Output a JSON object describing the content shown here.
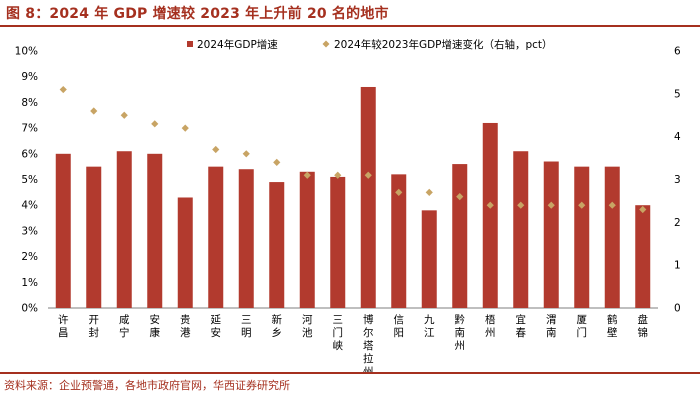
{
  "figure": {
    "title": "图 8：2024 年 GDP 增速较 2023 年上升前 20 名的地市",
    "source": "资料来源：企业预警通，各地市政府官网，华西证券研究所"
  },
  "colors": {
    "bar": "#B23A2E",
    "marker": "#C8A464",
    "brand": "#A5301F"
  },
  "chart_data": {
    "type": "bar",
    "categories": [
      "许昌",
      "开封",
      "咸宁",
      "安康",
      "贵港",
      "延安",
      "三明",
      "新乡",
      "河池",
      "三门峡",
      "博尔塔拉州",
      "信阳",
      "九江",
      "黔南州",
      "梧州",
      "宜春",
      "渭南",
      "厦门",
      "鹤壁",
      "盘锦"
    ],
    "category_labels": [
      [
        "许",
        "昌"
      ],
      [
        "开",
        "封"
      ],
      [
        "咸",
        "宁"
      ],
      [
        "安",
        "康"
      ],
      [
        "贵",
        "港"
      ],
      [
        "延",
        "安"
      ],
      [
        "三",
        "明"
      ],
      [
        "新",
        "乡"
      ],
      [
        "河",
        "池"
      ],
      [
        "三",
        "门",
        "峡"
      ],
      [
        "博",
        "尔",
        "塔",
        "拉",
        "州"
      ],
      [
        "信",
        "阳"
      ],
      [
        "九",
        "江"
      ],
      [
        "黔",
        "南",
        "州"
      ],
      [
        "梧",
        "州"
      ],
      [
        "宜",
        "春"
      ],
      [
        "渭",
        "南"
      ],
      [
        "厦",
        "门"
      ],
      [
        "鹤",
        "壁"
      ],
      [
        "盘",
        "锦"
      ]
    ],
    "series": [
      {
        "name": "2024年GDP增速",
        "type": "bar",
        "axis": "left",
        "values": [
          6.0,
          5.5,
          6.1,
          6.0,
          4.3,
          5.5,
          5.4,
          4.9,
          5.3,
          5.1,
          8.6,
          5.2,
          3.8,
          5.6,
          7.2,
          6.1,
          5.7,
          5.5,
          5.5,
          4.0
        ]
      },
      {
        "name": "2024年较2023年GDP增速变化（右轴，pct）",
        "type": "scatter",
        "marker": "diamond",
        "axis": "right",
        "values": [
          5.1,
          4.6,
          4.5,
          4.3,
          4.2,
          3.7,
          3.6,
          3.4,
          3.1,
          3.1,
          3.1,
          2.7,
          2.7,
          2.6,
          2.4,
          2.4,
          2.4,
          2.4,
          2.4,
          2.3
        ]
      }
    ],
    "y_left": {
      "min": 0,
      "max": 10,
      "step": 1,
      "ticks": [
        "0%",
        "1%",
        "2%",
        "3%",
        "4%",
        "5%",
        "6%",
        "7%",
        "8%",
        "9%",
        "10%"
      ]
    },
    "y_right": {
      "min": 0,
      "max": 6,
      "step": 1,
      "ticks": [
        "0",
        "1",
        "2",
        "3",
        "4",
        "5",
        "6"
      ]
    },
    "grid": false,
    "legend_position": "top-center"
  }
}
